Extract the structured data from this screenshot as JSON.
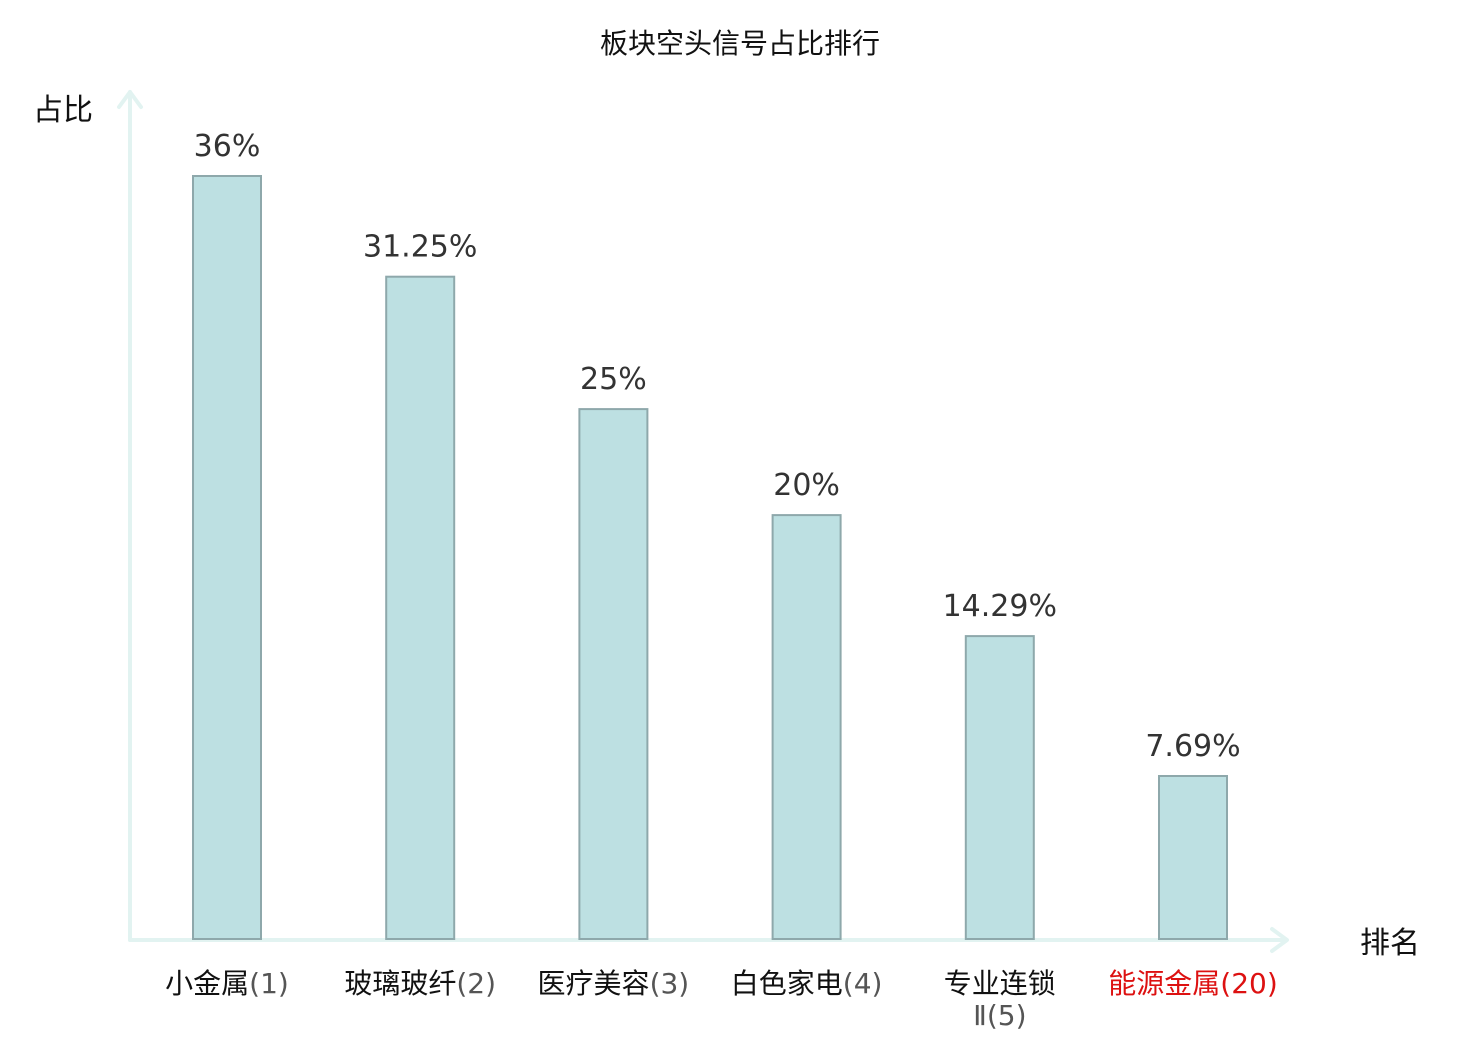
{
  "chart_data": {
    "type": "bar",
    "title": "板块空头信号占比排行",
    "ylabel": "占比",
    "xlabel": "排名",
    "categories": [
      {
        "name": "小金属",
        "rank": "(1)"
      },
      {
        "name": "玻璃玻纤",
        "rank": "(2)"
      },
      {
        "name": "医疗美容",
        "rank": "(3)"
      },
      {
        "name": "白色家电",
        "rank": "(4)"
      },
      {
        "name": "专业连锁",
        "rank": "Ⅱ(5)"
      },
      {
        "name": "能源金属",
        "rank": "(20)"
      }
    ],
    "values": [
      36,
      31.25,
      25,
      20,
      14.29,
      7.69
    ],
    "value_labels": [
      "36%",
      "31.25%",
      "25%",
      "20%",
      "14.29%",
      "7.69%"
    ],
    "highlight_index": 5,
    "ylim": [
      0,
      36
    ],
    "grid": false,
    "colors": {
      "bar_fill": "#bde0e2",
      "bar_stroke": "#8ea8ab",
      "axis": "#e2f3f1",
      "text": "#111111",
      "value_text": "#333333",
      "rank_text": "#555555",
      "highlight": "#dd1111"
    }
  }
}
